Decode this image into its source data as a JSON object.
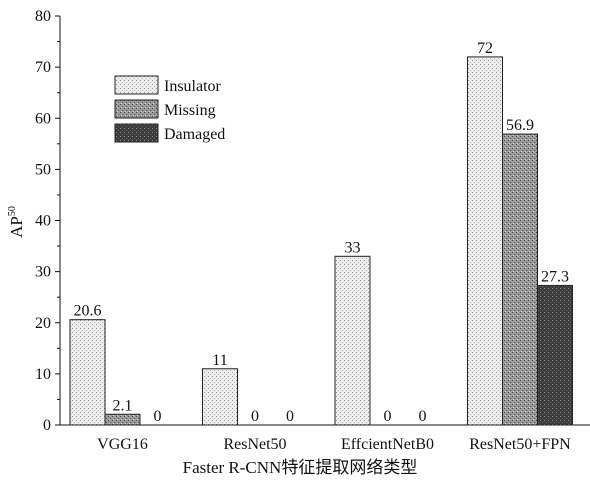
{
  "chart_data": {
    "type": "bar",
    "title": "",
    "xlabel": "Faster R-CNN特征提取网络类型",
    "ylabel": "AP",
    "ylabel_superscript": "50",
    "ylim": [
      0,
      80
    ],
    "yticks": [
      0,
      10,
      20,
      30,
      40,
      50,
      60,
      70,
      80
    ],
    "categories": [
      "VGG16",
      "ResNet50",
      "EffcientNetB0",
      "ResNet50+FPN"
    ],
    "series": [
      {
        "name": "Insulator",
        "values": [
          20.6,
          11,
          33,
          72
        ],
        "labels": [
          "20.6",
          "11",
          "33",
          "72"
        ],
        "color": "#e6e6e6"
      },
      {
        "name": "Missing",
        "values": [
          2.1,
          0,
          0,
          56.9
        ],
        "labels": [
          "2.1",
          "0",
          "0",
          "56.9"
        ],
        "color": "#8c8c8c"
      },
      {
        "name": "Damaged",
        "values": [
          0,
          0,
          0,
          27.3
        ],
        "labels": [
          "0",
          "0",
          "0",
          "27.3"
        ],
        "color": "#3a3a3a"
      }
    ],
    "legend_position": "top-left",
    "grid": false
  }
}
